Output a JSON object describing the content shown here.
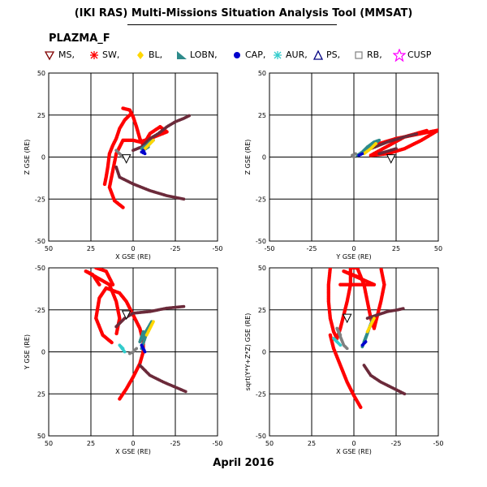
{
  "title": "(IKI RAS) Multi-Missions Situation Analysis Tool (MMSAT)",
  "satellite": "PLAZMA_F",
  "date": "April 2016",
  "legend": [
    {
      "label": "MS,",
      "marker": "triangle-down",
      "color": "#800000"
    },
    {
      "label": "SW,",
      "marker": "asterisk",
      "color": "#ff0000"
    },
    {
      "label": "BL,",
      "marker": "diamond",
      "color": "#ffd700"
    },
    {
      "label": "LOBN,",
      "marker": "right-triangle",
      "color": "#2e8b8b"
    },
    {
      "label": "CAP,",
      "marker": "filled-circle",
      "color": "#0000cd"
    },
    {
      "label": "AUR,",
      "marker": "asterisk",
      "color": "#33cccc"
    },
    {
      "label": "PS,",
      "marker": "triangle-up",
      "color": "#000080"
    },
    {
      "label": "RB,",
      "marker": "square",
      "color": "#808080"
    },
    {
      "label": "CUSP",
      "marker": "star",
      "color": "#ff00ff"
    }
  ],
  "chart_data": [
    {
      "type": "scatter",
      "xlabel": "X GSE (RE)",
      "ylabel": "Z GSE (RE)",
      "xlim": [
        50,
        -50
      ],
      "ylim": [
        -50,
        50
      ],
      "xticks": [
        "50",
        "25",
        "0",
        "-25",
        "-50"
      ],
      "yticks": [
        "50",
        "25",
        "0",
        "-25",
        "-50"
      ],
      "grid": true,
      "series": [
        {
          "role": "orbit-SW",
          "color": "#ff0000",
          "points": [
            [
              2,
              25
            ],
            [
              5,
              22
            ],
            [
              8,
              17
            ],
            [
              10,
              11
            ],
            [
              12,
              7
            ],
            [
              14,
              2
            ],
            [
              15,
              -6
            ],
            [
              16,
              -12
            ],
            [
              17,
              -17
            ],
            [
              6,
              29
            ],
            [
              2,
              28
            ],
            [
              0,
              24
            ],
            [
              -2,
              18
            ],
            [
              -4,
              11
            ],
            [
              -6,
              7
            ],
            [
              -10,
              14
            ],
            [
              -16,
              18
            ],
            [
              -20,
              15
            ],
            [
              -10,
              11
            ],
            [
              -4,
              9
            ],
            [
              0,
              10
            ],
            [
              6,
              10
            ],
            [
              10,
              2
            ],
            [
              12,
              -8
            ],
            [
              14,
              -18
            ],
            [
              11,
              -26
            ],
            [
              6,
              -30
            ]
          ]
        },
        {
          "role": "orbit-MS",
          "color": "#6b2a3a",
          "points": [
            [
              0,
              4
            ],
            [
              -5,
              6
            ],
            [
              -10,
              11
            ],
            [
              -15,
              14
            ],
            [
              -20,
              18
            ],
            [
              -25,
              21
            ],
            [
              -30,
              23
            ],
            [
              -34,
              25
            ],
            [
              10,
              -6
            ],
            [
              8,
              -12
            ],
            [
              0,
              -16
            ],
            [
              -10,
              -20
            ],
            [
              -20,
              -23
            ],
            [
              -30,
              -25
            ]
          ]
        },
        {
          "role": "orbit-LOBN",
          "color": "#2e8b8b",
          "points": [
            [
              -5,
              5
            ],
            [
              -8,
              7
            ],
            [
              -10,
              9
            ],
            [
              -12,
              10
            ],
            [
              -6,
              4
            ],
            [
              -9,
              6
            ]
          ]
        },
        {
          "role": "orbit-BL",
          "color": "#ffd700",
          "points": [
            [
              -12,
              10
            ],
            [
              -10,
              8
            ],
            [
              -7,
              5
            ]
          ]
        },
        {
          "role": "orbit-CAP",
          "color": "#0000cd",
          "points": [
            [
              -6,
              4
            ],
            [
              -7,
              2
            ],
            [
              -5,
              3
            ]
          ]
        },
        {
          "role": "orbit-RB",
          "color": "#808080",
          "points": [
            [
              10,
              4
            ],
            [
              8,
              2
            ],
            [
              6,
              0
            ]
          ]
        },
        {
          "role": "orbit-MS-marker",
          "color": "#000000",
          "points": [
            [
              4,
              -1
            ]
          ]
        }
      ]
    },
    {
      "type": "scatter",
      "xlabel": "Y GSE (RE)",
      "ylabel": "Z GSE (RE)",
      "xlim": [
        -50,
        50
      ],
      "ylim": [
        -50,
        50
      ],
      "xticks": [
        "-50",
        "-25",
        "0",
        "25",
        "50"
      ],
      "yticks": [
        "50",
        "25",
        "0",
        "-25",
        "-50"
      ],
      "grid": true,
      "series": [
        {
          "role": "orbit-SW",
          "color": "#ff0000",
          "points": [
            [
              15,
              8
            ],
            [
              25,
              11
            ],
            [
              35,
              13
            ],
            [
              45,
              15
            ],
            [
              50,
              16
            ],
            [
              40,
              10
            ],
            [
              30,
              5
            ],
            [
              20,
              2
            ],
            [
              10,
              1
            ],
            [
              30,
              12
            ],
            [
              44,
              16
            ],
            [
              22,
              4
            ]
          ]
        },
        {
          "role": "orbit-MS",
          "color": "#6b2a3a",
          "points": [
            [
              10,
              5
            ],
            [
              20,
              9
            ],
            [
              30,
              12
            ],
            [
              38,
              14
            ],
            [
              15,
              2
            ],
            [
              25,
              5
            ]
          ]
        },
        {
          "role": "orbit-LOBN",
          "color": "#2e8b8b",
          "points": [
            [
              2,
              1
            ],
            [
              5,
              3
            ],
            [
              8,
              6
            ],
            [
              12,
              9
            ],
            [
              15,
              10
            ],
            [
              4,
              2
            ],
            [
              7,
              4
            ],
            [
              10,
              7
            ]
          ]
        },
        {
          "role": "orbit-BL",
          "color": "#ffd700",
          "points": [
            [
              6,
              2
            ],
            [
              10,
              5
            ],
            [
              13,
              8
            ]
          ]
        },
        {
          "role": "orbit-CAP",
          "color": "#0000cd",
          "points": [
            [
              3,
              1
            ],
            [
              5,
              2
            ]
          ]
        },
        {
          "role": "orbit-RB",
          "color": "#808080",
          "points": [
            [
              0,
              0
            ],
            [
              -1,
              1
            ],
            [
              1,
              2
            ]
          ]
        },
        {
          "role": "orbit-MS-marker",
          "color": "#000000",
          "points": [
            [
              22,
              -1
            ]
          ]
        }
      ]
    },
    {
      "type": "scatter",
      "xlabel": "X GSE (RE)",
      "ylabel": "Y GSE (RE)",
      "xlim": [
        50,
        -50
      ],
      "ylim": [
        -50,
        50
      ],
      "xticks": [
        "50",
        "25",
        "0",
        "-25",
        "-50"
      ],
      "yticks": [
        "-50",
        "-25",
        "0",
        "25",
        "50"
      ],
      "grid": true,
      "series": [
        {
          "role": "orbit-SW",
          "color": "#ff0000",
          "points": [
            [
              8,
              -28
            ],
            [
              4,
              -22
            ],
            [
              0,
              -15
            ],
            [
              -4,
              -7
            ],
            [
              -6,
              0
            ],
            [
              -6,
              6
            ],
            [
              -4,
              14
            ],
            [
              0,
              22
            ],
            [
              4,
              30
            ],
            [
              8,
              35
            ],
            [
              16,
              38
            ],
            [
              20,
              32
            ],
            [
              22,
              20
            ],
            [
              18,
              10
            ],
            [
              12,
              5
            ],
            [
              20,
              40
            ],
            [
              24,
              46
            ],
            [
              28,
              48
            ],
            [
              14,
              40
            ],
            [
              10,
              30
            ],
            [
              8,
              20
            ],
            [
              10,
              10
            ],
            [
              12,
              40
            ],
            [
              16,
              48
            ],
            [
              22,
              50
            ]
          ]
        },
        {
          "role": "orbit-MS",
          "color": "#6b2a3a",
          "points": [
            [
              -4,
              -8
            ],
            [
              -10,
              -14
            ],
            [
              -18,
              -18
            ],
            [
              -25,
              -21
            ],
            [
              -32,
              -24
            ],
            [
              10,
              15
            ],
            [
              5,
              20
            ],
            [
              0,
              23
            ],
            [
              -10,
              24
            ],
            [
              -20,
              26
            ],
            [
              -30,
              27
            ]
          ]
        },
        {
          "role": "orbit-LOBN",
          "color": "#2e8b8b",
          "points": [
            [
              -5,
              2
            ],
            [
              -7,
              8
            ],
            [
              -9,
              14
            ],
            [
              -11,
              18
            ],
            [
              -4,
              6
            ],
            [
              -6,
              12
            ]
          ]
        },
        {
          "role": "orbit-BL",
          "color": "#ffd700",
          "points": [
            [
              -12,
              18
            ],
            [
              -10,
              14
            ],
            [
              -8,
              10
            ]
          ]
        },
        {
          "role": "orbit-CAP",
          "color": "#0000cd",
          "points": [
            [
              -6,
              2
            ],
            [
              -7,
              0
            ],
            [
              -5,
              4
            ]
          ]
        },
        {
          "role": "orbit-AUR",
          "color": "#33cccc",
          "points": [
            [
              6,
              2
            ],
            [
              8,
              4
            ],
            [
              5,
              0
            ]
          ]
        },
        {
          "role": "orbit-RB",
          "color": "#808080",
          "points": [
            [
              2,
              -1
            ],
            [
              0,
              0
            ],
            [
              -2,
              2
            ]
          ]
        },
        {
          "role": "orbit-MS-marker",
          "color": "#000000",
          "points": [
            [
              4,
              22
            ]
          ]
        }
      ]
    },
    {
      "type": "scatter",
      "xlabel": "X GSE (RE)",
      "ylabel": "sqrt(Y*Y+Z*Z) GSE (RE)",
      "xlim": [
        50,
        -50
      ],
      "ylim": [
        -50,
        50
      ],
      "xticks": [
        "50",
        "25",
        "0",
        "-25",
        "-50"
      ],
      "yticks": [
        "50",
        "25",
        "0",
        "-25",
        "-50"
      ],
      "grid": true,
      "series": [
        {
          "role": "orbit-SW",
          "color": "#ff0000",
          "points": [
            [
              14,
              50
            ],
            [
              15,
              40
            ],
            [
              15,
              30
            ],
            [
              14,
              20
            ],
            [
              12,
              12
            ],
            [
              10,
              8
            ],
            [
              8,
              14
            ],
            [
              6,
              22
            ],
            [
              4,
              30
            ],
            [
              2,
              40
            ],
            [
              2,
              50
            ],
            [
              -2,
              50
            ],
            [
              -6,
              40
            ],
            [
              -8,
              30
            ],
            [
              -10,
              20
            ],
            [
              -12,
              14
            ],
            [
              -14,
              22
            ],
            [
              -16,
              30
            ],
            [
              -18,
              40
            ],
            [
              -16,
              50
            ],
            [
              8,
              40
            ],
            [
              -12,
              40
            ],
            [
              6,
              48
            ],
            [
              -4,
              44
            ],
            [
              14,
              10
            ],
            [
              12,
              2
            ],
            [
              8,
              -8
            ],
            [
              4,
              -18
            ],
            [
              0,
              -26
            ],
            [
              -4,
              -33
            ]
          ]
        },
        {
          "role": "orbit-MS",
          "color": "#6b2a3a",
          "points": [
            [
              -8,
              20
            ],
            [
              -14,
              22
            ],
            [
              -20,
              24
            ],
            [
              -26,
              25
            ],
            [
              -30,
              26
            ],
            [
              -6,
              -8
            ],
            [
              -10,
              -14
            ],
            [
              -16,
              -18
            ],
            [
              -22,
              -21
            ],
            [
              -30,
              -25
            ]
          ]
        },
        {
          "role": "orbit-LOBN",
          "color": "#2e8b8b",
          "points": [
            [
              -5,
              3
            ],
            [
              -7,
              8
            ],
            [
              -9,
              14
            ],
            [
              -11,
              19
            ],
            [
              -6,
              6
            ],
            [
              -8,
              11
            ]
          ]
        },
        {
          "role": "orbit-BL",
          "color": "#ffd700",
          "points": [
            [
              -12,
              20
            ],
            [
              -10,
              16
            ],
            [
              -8,
              12
            ]
          ]
        },
        {
          "role": "orbit-CAP",
          "color": "#0000cd",
          "points": [
            [
              -5,
              4
            ],
            [
              -7,
              6
            ]
          ]
        },
        {
          "role": "orbit-AUR",
          "color": "#33cccc",
          "points": [
            [
              10,
              6
            ],
            [
              12,
              8
            ],
            [
              8,
              4
            ]
          ]
        },
        {
          "role": "orbit-RB",
          "color": "#808080",
          "points": [
            [
              8,
              10
            ],
            [
              10,
              14
            ],
            [
              6,
              4
            ],
            [
              4,
              2
            ]
          ]
        },
        {
          "role": "orbit-MS-marker",
          "color": "#000000",
          "points": [
            [
              4,
              20
            ]
          ]
        }
      ]
    }
  ]
}
